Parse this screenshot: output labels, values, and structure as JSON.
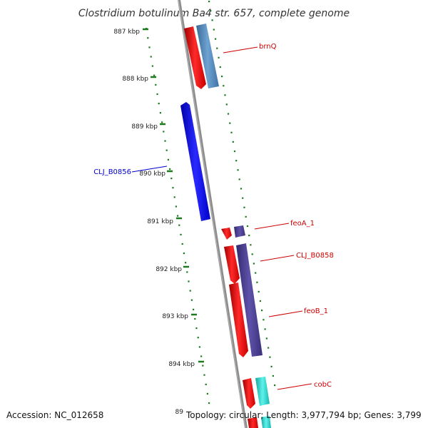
{
  "title": "Clostridium botulinum Ba4 str. 657, complete genome",
  "footer": {
    "accession": "Accession: NC_012658",
    "topology": "Topology: circular; Length: 3,977,794 bp; Genes: 3,799"
  },
  "ticks": [
    "887 kbp",
    "888 kbp",
    "889 kbp",
    "890 kbp",
    "891 kbp",
    "892 kbp",
    "893 kbp",
    "894 kbp",
    "89"
  ],
  "colors": {
    "backbone": "#8c8c8c",
    "tick_marks": "#1e7a1e",
    "forward_label": "#0000cc",
    "reverse_label": "#cc0000",
    "cds": "#ee1111",
    "gene_blue": "#1111ee",
    "gene_steel": "#4f86b8",
    "gene_purple": "#4a3f8f",
    "gene_cyan": "#24d6cc"
  },
  "genes": [
    {
      "name": "brnQ"
    },
    {
      "name": "CLJ_B0856"
    },
    {
      "name": "feoA_1"
    },
    {
      "name": "CLJ_B0858"
    },
    {
      "name": "feoB_1"
    },
    {
      "name": "cobC"
    }
  ]
}
